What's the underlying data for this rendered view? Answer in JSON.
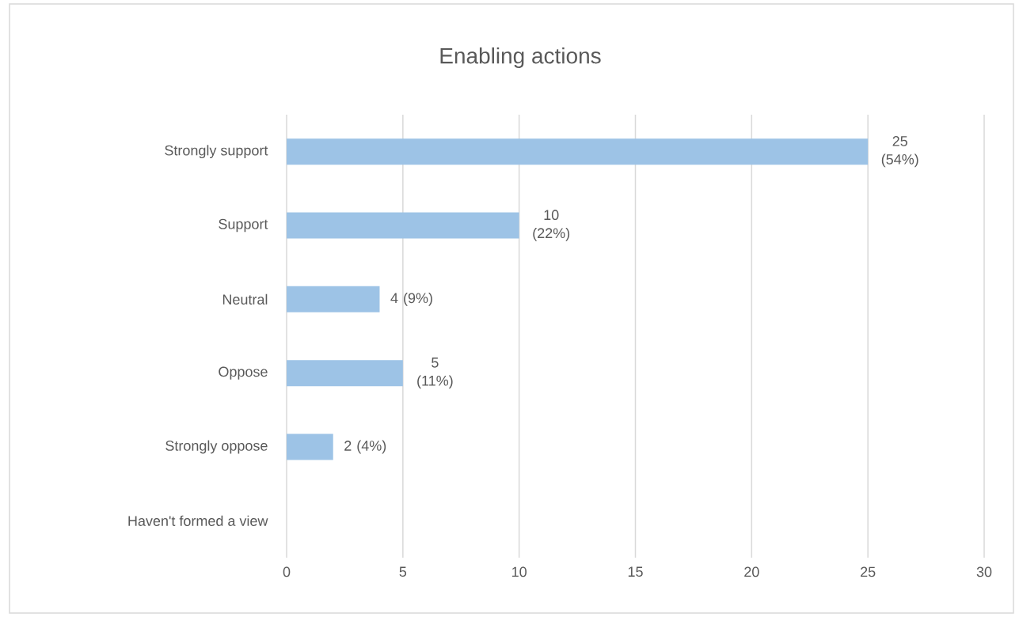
{
  "chart_data": {
    "type": "bar",
    "orientation": "horizontal",
    "title": "Enabling actions",
    "categories": [
      "Strongly support",
      "Support",
      "Neutral",
      "Oppose",
      "Strongly oppose",
      "Haven't formed a view"
    ],
    "values": [
      25,
      10,
      4,
      5,
      2,
      0
    ],
    "value_labels": [
      "25 (54%)",
      "10 (22%)",
      "4 (9%)",
      "5 (11%)",
      "2 (4%)",
      null
    ],
    "color": "#9dc3e6",
    "xlim": [
      0,
      30
    ],
    "xticks": [
      0,
      5,
      10,
      15,
      20,
      25,
      30
    ],
    "grid": "x"
  }
}
